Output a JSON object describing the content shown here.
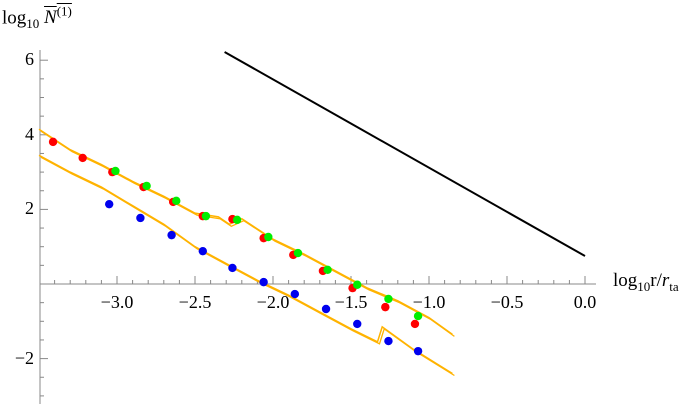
{
  "chart_data": {
    "type": "scatter",
    "title": "",
    "xlabel": "log10 r/r_ta",
    "ylabel": "log10 N(1) (overlined)",
    "ylabel_parts": {
      "prefix": "log",
      "sub": "10",
      "symbol": "N",
      "sup": "(1)"
    },
    "xlabel_parts": {
      "prefix": "log",
      "sub": "10",
      "body": "r/",
      "var": "r",
      "var_sub": "ta"
    },
    "xlim": [
      -3.5,
      0.05
    ],
    "ylim": [
      -3.3,
      6.3
    ],
    "x_ticks": [
      -3.0,
      -2.5,
      -2.0,
      -1.5,
      -1.0,
      -0.5,
      0.0
    ],
    "x_tick_labels": [
      "−3.0",
      "−2.5",
      "−2.0",
      "−1.5",
      "−1.0",
      "−0.5",
      "0.0"
    ],
    "y_ticks": [
      6,
      4,
      2,
      -2
    ],
    "y_tick_labels": [
      "6",
      "4",
      "2",
      "−2"
    ],
    "grid": false,
    "legend": null,
    "series": [
      {
        "name": "reference line",
        "kind": "line",
        "color": "#000000",
        "x": [
          -2.31,
          0.0
        ],
        "y": [
          6.22,
          0.75
        ]
      },
      {
        "name": "red points",
        "kind": "scatter",
        "color": "#ff0000",
        "x": [
          -3.41,
          -3.22,
          -3.03,
          -2.83,
          -2.64,
          -2.45,
          -2.26,
          -2.06,
          -1.87,
          -1.68,
          -1.49,
          -1.28,
          -1.09
        ],
        "y": [
          3.81,
          3.38,
          3.0,
          2.6,
          2.2,
          1.82,
          1.74,
          1.23,
          0.78,
          0.35,
          -0.11,
          -0.62,
          -1.07
        ]
      },
      {
        "name": "green points",
        "kind": "scatter",
        "color": "#00ee00",
        "x": [
          -3.01,
          -2.81,
          -2.62,
          -2.43,
          -2.23,
          -2.03,
          -1.84,
          -1.65,
          -1.46,
          -1.26,
          -1.07
        ],
        "y": [
          3.03,
          2.63,
          2.23,
          1.82,
          1.72,
          1.26,
          0.83,
          0.38,
          -0.02,
          -0.4,
          -0.86
        ]
      },
      {
        "name": "blue points",
        "kind": "scatter",
        "color": "#0000ee",
        "x": [
          -3.05,
          -2.85,
          -2.65,
          -2.45,
          -2.26,
          -2.06,
          -1.86,
          -1.66,
          -1.46,
          -1.26,
          -1.07
        ],
        "y": [
          2.14,
          1.77,
          1.31,
          0.88,
          0.43,
          0.05,
          -0.27,
          -0.67,
          -1.07,
          -1.53,
          -1.8
        ]
      },
      {
        "name": "upper orange curves",
        "kind": "line",
        "color": "#ffb300",
        "x": [
          -3.5,
          -3.3,
          -3.1,
          -2.9,
          -2.7,
          -2.5,
          -2.35,
          -2.28,
          -2.2,
          -2.0,
          -1.8,
          -1.6,
          -1.4,
          -1.2,
          -1.0,
          -0.85
        ],
        "y": [
          4.15,
          3.6,
          3.2,
          2.75,
          2.35,
          1.9,
          1.8,
          1.6,
          1.75,
          1.2,
          0.8,
          0.35,
          -0.1,
          -0.45,
          -0.9,
          -1.35
        ]
      },
      {
        "name": "lower orange curves",
        "kind": "line",
        "color": "#ffb300",
        "x": [
          -3.5,
          -3.3,
          -3.1,
          -2.9,
          -2.7,
          -2.5,
          -2.3,
          -2.1,
          -1.9,
          -1.7,
          -1.5,
          -1.33,
          -1.3,
          -1.1,
          -0.85
        ],
        "y": [
          3.45,
          3.0,
          2.6,
          2.1,
          1.6,
          1.0,
          0.55,
          0.1,
          -0.3,
          -0.75,
          -1.2,
          -1.55,
          -1.15,
          -1.75,
          -2.4
        ]
      }
    ]
  },
  "axes": {
    "x_label": {
      "prefix": "log",
      "sub": "10",
      "body": "r/",
      "var": "r",
      "var_sub": "ta"
    },
    "y_label": {
      "prefix": "log",
      "sub": "10",
      "symbol": "N",
      "sup": "(1)"
    }
  }
}
